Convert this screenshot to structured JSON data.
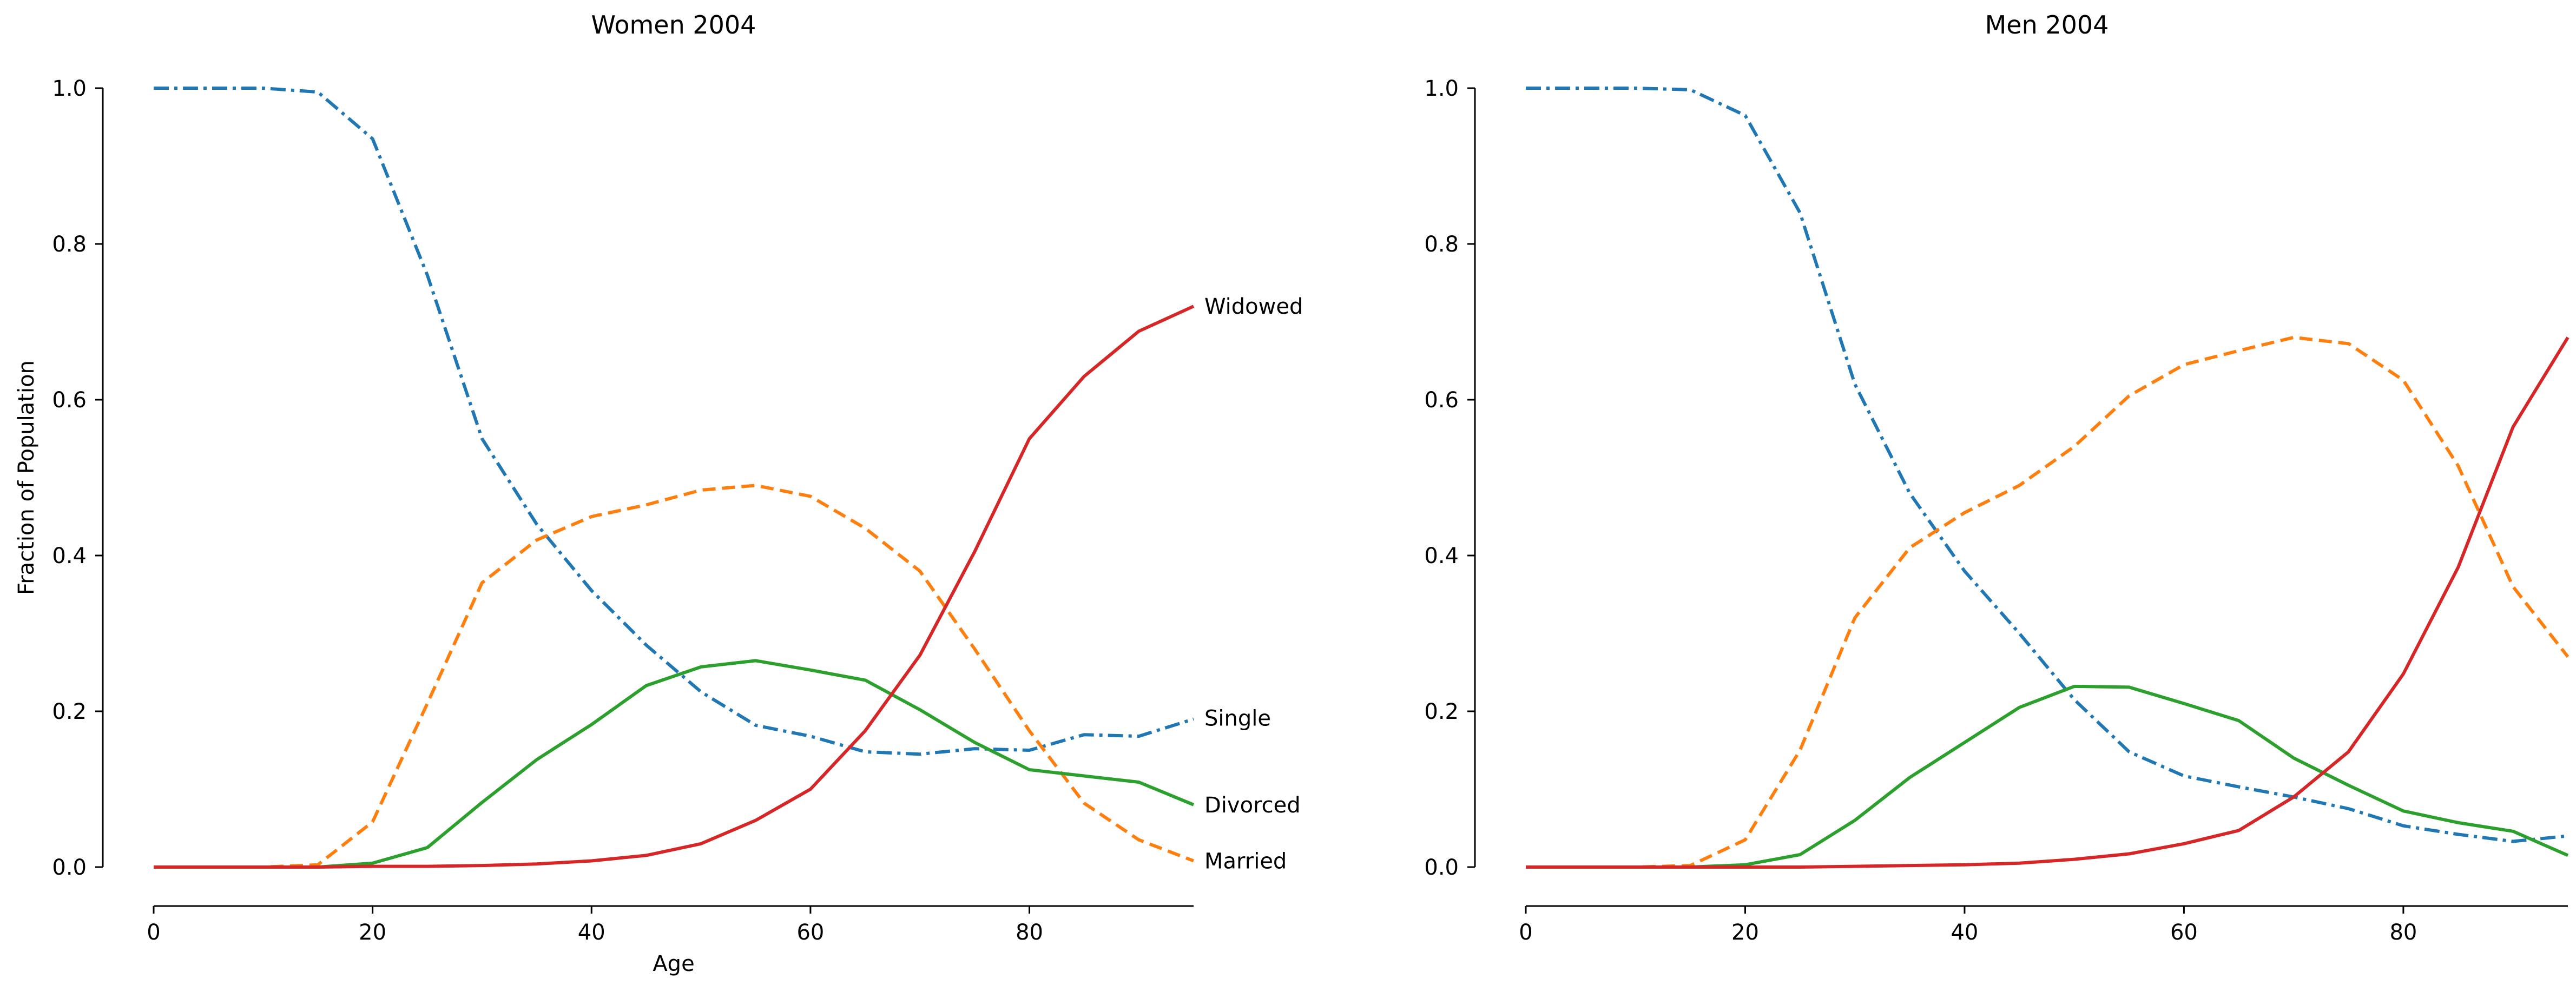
{
  "chart_data": [
    {
      "type": "line",
      "title": "Women 2004",
      "xlabel": "Age",
      "ylabel": "Fraction of Population",
      "xlim": [
        0,
        95
      ],
      "ylim": [
        0,
        1.0
      ],
      "xticks": [
        0,
        20,
        40,
        60,
        80
      ],
      "yticks": [
        0.0,
        0.2,
        0.4,
        0.6,
        0.8,
        1.0
      ],
      "grid": false,
      "legend": "inline labels at right end of lines",
      "x": [
        0,
        5,
        10,
        15,
        20,
        25,
        30,
        35,
        40,
        45,
        50,
        55,
        60,
        65,
        70,
        75,
        80,
        85,
        90,
        95
      ],
      "series": [
        {
          "name": "Single",
          "color": "#1f77b4",
          "dash": "dashdot",
          "values": [
            1.0,
            1.0,
            1.0,
            0.995,
            0.935,
            0.76,
            0.55,
            0.44,
            0.355,
            0.285,
            0.225,
            0.182,
            0.168,
            0.148,
            0.145,
            0.152,
            0.15,
            0.17,
            0.168,
            0.19
          ]
        },
        {
          "name": "Married",
          "color": "#ff7f0e",
          "dash": "dashed",
          "values": [
            0.0,
            0.0,
            0.0,
            0.003,
            0.058,
            0.21,
            0.365,
            0.42,
            0.45,
            0.465,
            0.484,
            0.49,
            0.476,
            0.435,
            0.38,
            0.28,
            0.175,
            0.082,
            0.035,
            0.008
          ]
        },
        {
          "name": "Divorced",
          "color": "#2ca02c",
          "dash": "solid",
          "values": [
            0.0,
            0.0,
            0.0,
            0.0,
            0.005,
            0.025,
            0.083,
            0.138,
            0.183,
            0.233,
            0.257,
            0.265,
            0.253,
            0.24,
            0.202,
            0.16,
            0.125,
            0.117,
            0.109,
            0.08
          ]
        },
        {
          "name": "Widowed",
          "color": "#d62728",
          "dash": "solid",
          "values": [
            0.0,
            0.0,
            0.0,
            0.0,
            0.001,
            0.001,
            0.002,
            0.004,
            0.008,
            0.015,
            0.03,
            0.06,
            0.1,
            0.175,
            0.272,
            0.405,
            0.55,
            0.63,
            0.688,
            0.72
          ]
        }
      ]
    },
    {
      "type": "line",
      "title": "Men 2004",
      "xlabel": "",
      "ylabel": "",
      "xlim": [
        0,
        95
      ],
      "ylim": [
        0,
        1.0
      ],
      "xticks": [
        0,
        20,
        40,
        60,
        80
      ],
      "yticks": [
        0.0,
        0.2,
        0.4,
        0.6,
        0.8,
        1.0
      ],
      "grid": false,
      "legend": "none",
      "x": [
        0,
        5,
        10,
        15,
        20,
        25,
        30,
        35,
        40,
        45,
        50,
        55,
        60,
        65,
        70,
        75,
        80,
        85,
        90,
        95
      ],
      "series": [
        {
          "name": "",
          "color": "#1f77b4",
          "dash": "dashdot",
          "values": [
            1.0,
            1.0,
            1.0,
            0.998,
            0.965,
            0.84,
            0.62,
            0.48,
            0.38,
            0.3,
            0.215,
            0.148,
            0.117,
            0.103,
            0.09,
            0.075,
            0.053,
            0.042,
            0.033,
            0.04
          ]
        },
        {
          "name": "",
          "color": "#ff7f0e",
          "dash": "dashed",
          "values": [
            0.0,
            0.0,
            0.0,
            0.002,
            0.035,
            0.15,
            0.32,
            0.41,
            0.455,
            0.49,
            0.54,
            0.605,
            0.645,
            0.663,
            0.68,
            0.672,
            0.625,
            0.515,
            0.36,
            0.27
          ]
        },
        {
          "name": "",
          "color": "#2ca02c",
          "dash": "solid",
          "values": [
            0.0,
            0.0,
            0.0,
            0.0,
            0.003,
            0.016,
            0.06,
            0.115,
            0.16,
            0.205,
            0.232,
            0.231,
            0.21,
            0.188,
            0.14,
            0.105,
            0.072,
            0.057,
            0.046,
            0.015
          ]
        },
        {
          "name": "",
          "color": "#d62728",
          "dash": "solid",
          "values": [
            0.0,
            0.0,
            0.0,
            0.0,
            0.0,
            0.0,
            0.001,
            0.002,
            0.003,
            0.005,
            0.01,
            0.017,
            0.03,
            0.047,
            0.09,
            0.148,
            0.248,
            0.385,
            0.565,
            0.68
          ]
        }
      ]
    }
  ]
}
